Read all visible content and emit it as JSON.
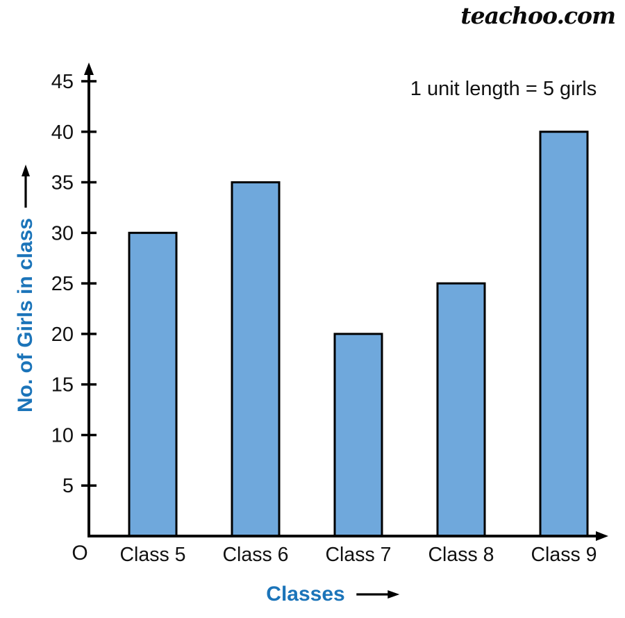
{
  "watermark": "teachoo.com",
  "annotation": "1 unit length = 5 girls",
  "origin_label": "O",
  "chart_data": {
    "type": "bar",
    "categories": [
      "Class 5",
      "Class 6",
      "Class 7",
      "Class 8",
      "Class 9"
    ],
    "values": [
      30,
      35,
      20,
      25,
      40
    ],
    "xlabel": "Classes",
    "ylabel": "No. of Girls in class",
    "y_ticks": [
      5,
      10,
      15,
      20,
      25,
      30,
      35,
      40,
      45
    ],
    "ylim": [
      0,
      46.7
    ],
    "annotation": "1 unit length = 5 girls",
    "bar_fill": "#6FA8DC",
    "bar_border": "#000000",
    "axis_color": "#000000",
    "label_color": "#1B74B9",
    "tick_label_color": "#111111",
    "grid": false,
    "legend": "none"
  }
}
